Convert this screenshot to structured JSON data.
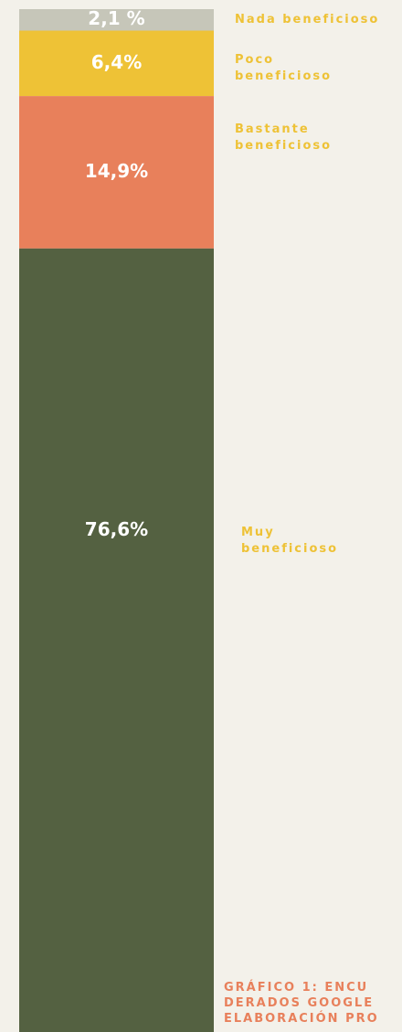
{
  "chart_data": {
    "type": "stacked_bar",
    "categories": [
      "Nada beneficioso",
      "Poco beneficioso",
      "Bastante beneficioso",
      "Muy beneficioso"
    ],
    "values": [
      2.1,
      6.4,
      14.9,
      76.6
    ],
    "value_labels": [
      "2,1 %",
      "6,4%",
      "14,9%",
      "76,6%"
    ],
    "colors": [
      "#c6c6b9",
      "#eec236",
      "#e8805b",
      "#546141"
    ],
    "label_color": "#eec236",
    "caption": [
      "GRÁFICO 1: ENCU",
      "DERADOS GOOGLE",
      "ELABORACIÓN PRO"
    ],
    "caption_color": "#e8805b"
  }
}
